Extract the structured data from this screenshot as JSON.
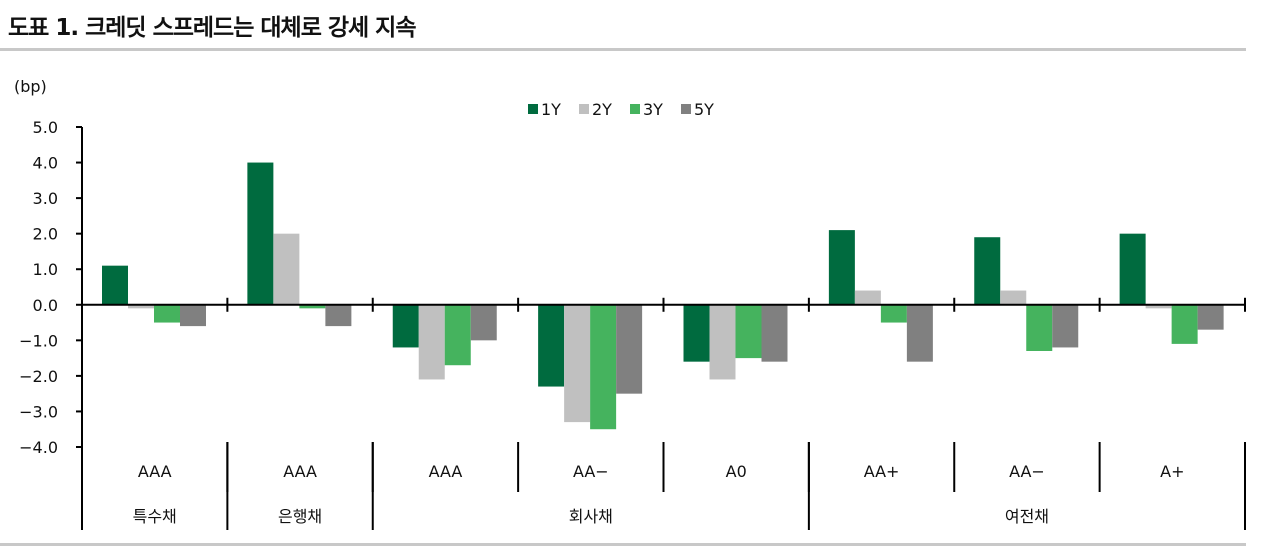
{
  "title": "도표 1. 크레딧 스프레드는 대체로 강세 지속",
  "chart_data": {
    "type": "bar",
    "title": "도표 1. 크레딧 스프레드는 대체로 강세 지속",
    "ylabel": "(bp)",
    "ylim": [
      -4.0,
      5.0
    ],
    "yticks": [
      "5.0",
      "4.0",
      "3.0",
      "2.0",
      "1.0",
      "0.0",
      "-1.0",
      "-2.0",
      "-3.0",
      "-4.0"
    ],
    "grid": false,
    "legend_position": "top-center",
    "categories": [
      "AAA",
      "AAA",
      "AAA",
      "AA−",
      "A0",
      "AA+",
      "AA−",
      "A+"
    ],
    "category_groups": [
      {
        "label": "특수채",
        "span": 1
      },
      {
        "label": "은행채",
        "span": 1
      },
      {
        "label": "회사채",
        "span": 3
      },
      {
        "label": "여전채",
        "span": 3
      }
    ],
    "series": [
      {
        "name": "1Y",
        "color": "#006b3f",
        "values": [
          1.1,
          4.0,
          -1.2,
          -2.3,
          -1.6,
          2.1,
          1.9,
          2.0
        ]
      },
      {
        "name": "2Y",
        "color": "#c0c0c0",
        "values": [
          -0.1,
          2.0,
          -2.1,
          -3.3,
          -2.1,
          0.4,
          0.4,
          -0.1
        ]
      },
      {
        "name": "3Y",
        "color": "#45b35e",
        "values": [
          -0.5,
          -0.1,
          -1.7,
          -3.5,
          -1.5,
          -0.5,
          -1.3,
          -1.1
        ]
      },
      {
        "name": "5Y",
        "color": "#808080",
        "values": [
          -0.6,
          -0.6,
          -1.0,
          -2.5,
          -1.6,
          -1.6,
          -1.2,
          -0.7
        ]
      }
    ]
  }
}
